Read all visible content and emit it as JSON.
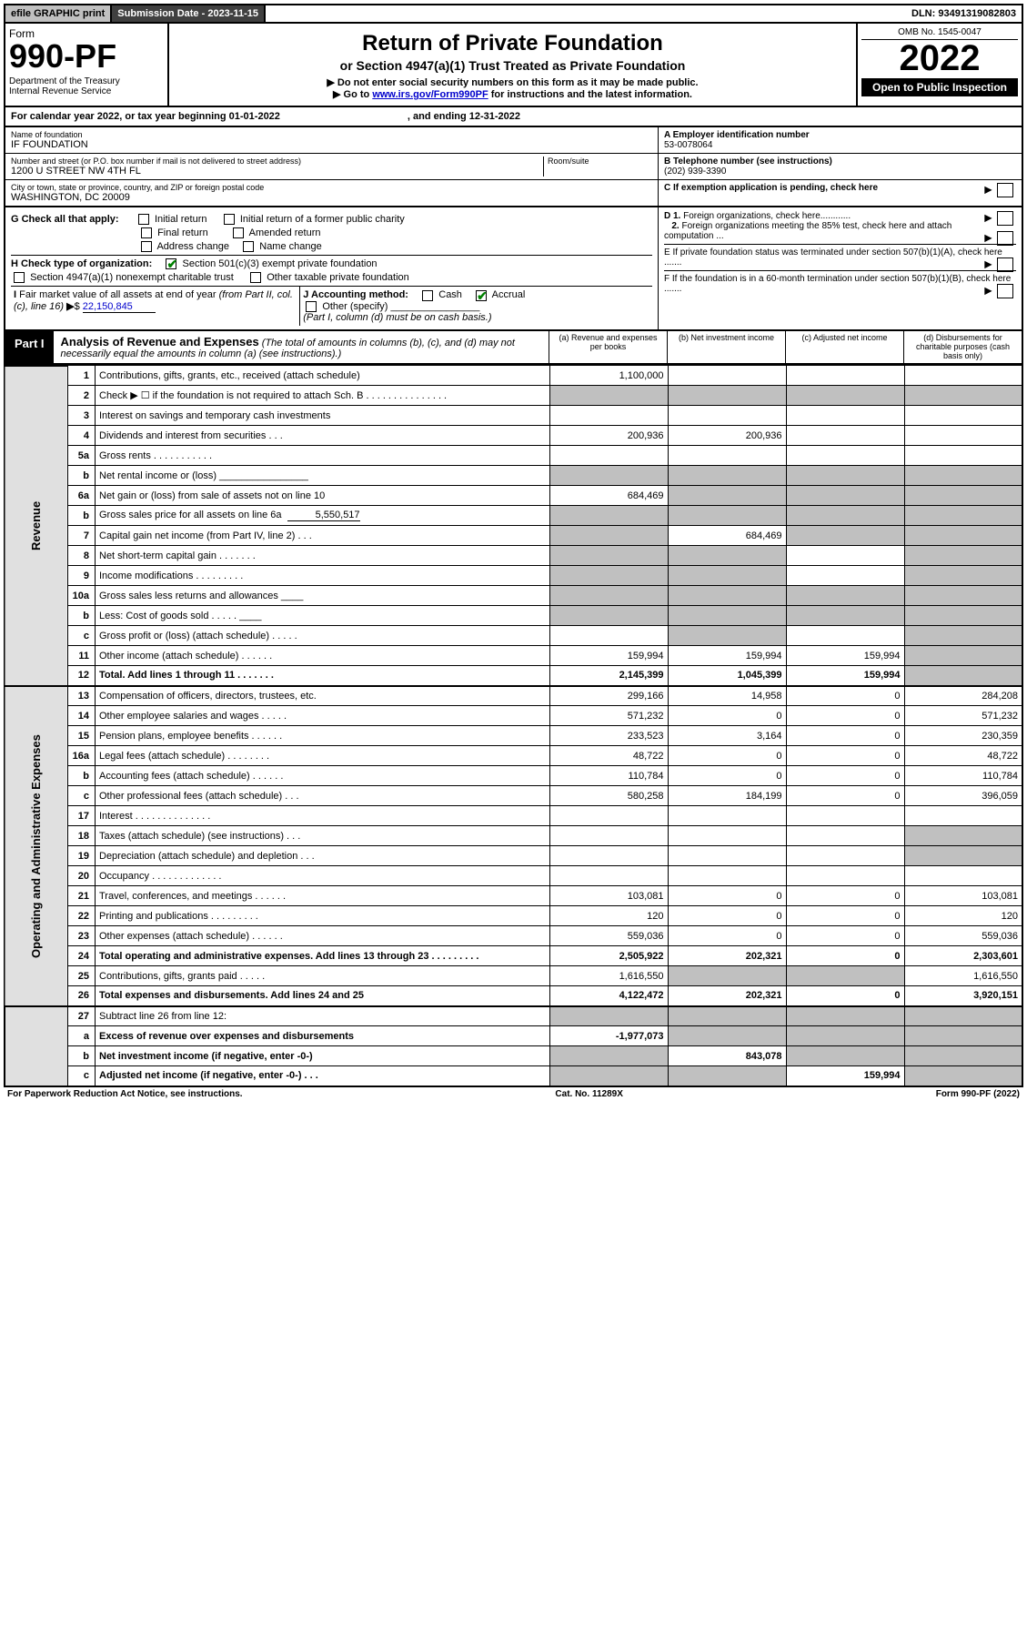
{
  "topbar": {
    "efile": "efile GRAPHIC print",
    "subdate_label": "Submission Date - ",
    "subdate": "2023-11-15",
    "dln_label": "DLN: ",
    "dln": "93491319082803"
  },
  "header": {
    "form_word": "Form",
    "form_num": "990-PF",
    "dept": "Department of the Treasury\nInternal Revenue Service",
    "title": "Return of Private Foundation",
    "subtitle": "or Section 4947(a)(1) Trust Treated as Private Foundation",
    "instr1": "▶ Do not enter social security numbers on this form as it may be made public.",
    "instr2_pre": "▶ Go to ",
    "instr2_link": "www.irs.gov/Form990PF",
    "instr2_post": " for instructions and the latest information.",
    "omb": "OMB No. 1545-0047",
    "year": "2022",
    "inspect": "Open to Public Inspection"
  },
  "calyr": {
    "text": "For calendar year 2022, or tax year beginning 01-01-2022",
    "ending": ", and ending 12-31-2022"
  },
  "entity": {
    "name_label": "Name of foundation",
    "name": "IF FOUNDATION",
    "addr_label": "Number and street (or P.O. box number if mail is not delivered to street address)",
    "addr": "1200 U STREET NW 4TH FL",
    "room_label": "Room/suite",
    "city_label": "City or town, state or province, country, and ZIP or foreign postal code",
    "city": "WASHINGTON, DC  20009",
    "ein_label": "A Employer identification number",
    "ein": "53-0078064",
    "tel_label": "B Telephone number (see instructions)",
    "tel": "(202) 939-3390",
    "c_label": "C If exemption application is pending, check here"
  },
  "checks": {
    "g_label": "G Check all that apply:",
    "g_opts": [
      "Initial return",
      "Initial return of a former public charity",
      "Final return",
      "Amended return",
      "Address change",
      "Name change"
    ],
    "h_label": "H Check type of organization:",
    "h_501c3": "Section 501(c)(3) exempt private foundation",
    "h_4947": "Section 4947(a)(1) nonexempt charitable trust",
    "h_other_tax": "Other taxable private foundation",
    "i_label": "I Fair market value of all assets at end of year (from Part II, col. (c), line 16) ▶$",
    "i_value": "22,150,845",
    "j_label": "J Accounting method:",
    "j_cash": "Cash",
    "j_accrual": "Accrual",
    "j_other": "Other (specify)",
    "j_note": "(Part I, column (d) must be on cash basis.)",
    "d1": "D 1. Foreign organizations, check here............",
    "d2": "2. Foreign organizations meeting the 85% test, check here and attach computation ...",
    "e": "E  If private foundation status was terminated under section 507(b)(1)(A), check here .......",
    "f": "F  If the foundation is in a 60-month termination under section 507(b)(1)(B), check here .......",
    "arrow": "▶"
  },
  "part1": {
    "label": "Part I",
    "title": "Analysis of Revenue and Expenses",
    "title_note": " (The total of amounts in columns (b), (c), and (d) may not necessarily equal the amounts in column (a) (see instructions).)",
    "col_a": "(a)   Revenue and expenses per books",
    "col_b": "(b)   Net investment income",
    "col_c": "(c)   Adjusted net income",
    "col_d": "(d)   Disbursements for charitable purposes (cash basis only)"
  },
  "vtabs": {
    "rev": "Revenue",
    "exp": "Operating and Administrative Expenses"
  },
  "rows": [
    {
      "n": "1",
      "d": "Contributions, gifts, grants, etc., received (attach schedule)",
      "a": "1,100,000",
      "b": "",
      "c": "",
      "dd": ""
    },
    {
      "n": "2",
      "d": "Check ▶ ☐ if the foundation is not required to attach Sch. B   .   .   .   .   .   .   .   .   .   .   .   .   .   .   .",
      "a": "g",
      "b": "g",
      "c": "g",
      "dd": "g"
    },
    {
      "n": "3",
      "d": "Interest on savings and temporary cash investments",
      "a": "",
      "b": "",
      "c": "",
      "dd": ""
    },
    {
      "n": "4",
      "d": "Dividends and interest from securities   .   .   .",
      "a": "200,936",
      "b": "200,936",
      "c": "",
      "dd": ""
    },
    {
      "n": "5a",
      "d": "Gross rents   .   .   .   .   .   .   .   .   .   .   .",
      "a": "",
      "b": "",
      "c": "",
      "dd": ""
    },
    {
      "n": "b",
      "d": "Net rental income or (loss)  ________________",
      "a": "g",
      "b": "g",
      "c": "g",
      "dd": "g"
    },
    {
      "n": "6a",
      "d": "Net gain or (loss) from sale of assets not on line 10",
      "a": "684,469",
      "b": "g",
      "c": "g",
      "dd": "g"
    },
    {
      "n": "b",
      "d": "Gross sales price for all assets on line 6a",
      "inline": "5,550,517",
      "a": "g",
      "b": "g",
      "c": "g",
      "dd": "g"
    },
    {
      "n": "7",
      "d": "Capital gain net income (from Part IV, line 2)   .   .   .",
      "a": "g",
      "b": "684,469",
      "c": "g",
      "dd": "g"
    },
    {
      "n": "8",
      "d": "Net short-term capital gain   .   .   .   .   .   .   .",
      "a": "g",
      "b": "g",
      "c": "",
      "dd": "g"
    },
    {
      "n": "9",
      "d": "Income modifications   .   .   .   .   .   .   .   .   .",
      "a": "g",
      "b": "g",
      "c": "",
      "dd": "g"
    },
    {
      "n": "10a",
      "d": "Gross sales less returns and allowances  ____",
      "a": "g",
      "b": "g",
      "c": "g",
      "dd": "g"
    },
    {
      "n": "b",
      "d": "Less: Cost of goods sold   .   .   .   .   .  ____",
      "a": "g",
      "b": "g",
      "c": "g",
      "dd": "g"
    },
    {
      "n": "c",
      "d": "Gross profit or (loss) (attach schedule)   .   .   .   .   .",
      "a": "",
      "b": "g",
      "c": "",
      "dd": "g"
    },
    {
      "n": "11",
      "d": "Other income (attach schedule)   .   .   .   .   .   .",
      "a": "159,994",
      "b": "159,994",
      "c": "159,994",
      "dd": "g"
    },
    {
      "n": "12",
      "d": "Total. Add lines 1 through 11   .   .   .   .   .   .   .",
      "bold": true,
      "a": "2,145,399",
      "b": "1,045,399",
      "c": "159,994",
      "dd": "g"
    }
  ],
  "exp_rows": [
    {
      "n": "13",
      "d": "Compensation of officers, directors, trustees, etc.",
      "a": "299,166",
      "b": "14,958",
      "c": "0",
      "dd": "284,208"
    },
    {
      "n": "14",
      "d": "Other employee salaries and wages   .   .   .   .   .",
      "a": "571,232",
      "b": "0",
      "c": "0",
      "dd": "571,232"
    },
    {
      "n": "15",
      "d": "Pension plans, employee benefits   .   .   .   .   .   .",
      "a": "233,523",
      "b": "3,164",
      "c": "0",
      "dd": "230,359"
    },
    {
      "n": "16a",
      "d": "Legal fees (attach schedule)   .   .   .   .   .   .   .   .",
      "a": "48,722",
      "b": "0",
      "c": "0",
      "dd": "48,722"
    },
    {
      "n": "b",
      "d": "Accounting fees (attach schedule)   .   .   .   .   .   .",
      "a": "110,784",
      "b": "0",
      "c": "0",
      "dd": "110,784"
    },
    {
      "n": "c",
      "d": "Other professional fees (attach schedule)   .   .   .",
      "a": "580,258",
      "b": "184,199",
      "c": "0",
      "dd": "396,059"
    },
    {
      "n": "17",
      "d": "Interest   .   .   .   .   .   .   .   .   .   .   .   .   .   .",
      "a": "",
      "b": "",
      "c": "",
      "dd": ""
    },
    {
      "n": "18",
      "d": "Taxes (attach schedule) (see instructions)   .   .   .",
      "a": "",
      "b": "",
      "c": "",
      "dd": "g"
    },
    {
      "n": "19",
      "d": "Depreciation (attach schedule) and depletion   .   .   .",
      "a": "",
      "b": "",
      "c": "",
      "dd": "g"
    },
    {
      "n": "20",
      "d": "Occupancy   .   .   .   .   .   .   .   .   .   .   .   .   .",
      "a": "",
      "b": "",
      "c": "",
      "dd": ""
    },
    {
      "n": "21",
      "d": "Travel, conferences, and meetings   .   .   .   .   .   .",
      "a": "103,081",
      "b": "0",
      "c": "0",
      "dd": "103,081"
    },
    {
      "n": "22",
      "d": "Printing and publications   .   .   .   .   .   .   .   .   .",
      "a": "120",
      "b": "0",
      "c": "0",
      "dd": "120"
    },
    {
      "n": "23",
      "d": "Other expenses (attach schedule)   .   .   .   .   .   .",
      "a": "559,036",
      "b": "0",
      "c": "0",
      "dd": "559,036"
    },
    {
      "n": "24",
      "d": "Total operating and administrative expenses. Add lines 13 through 23   .   .   .   .   .   .   .   .   .",
      "bold": true,
      "a": "2,505,922",
      "b": "202,321",
      "c": "0",
      "dd": "2,303,601"
    },
    {
      "n": "25",
      "d": "Contributions, gifts, grants paid   .   .   .   .   .",
      "a": "1,616,550",
      "b": "g",
      "c": "g",
      "dd": "1,616,550"
    },
    {
      "n": "26",
      "d": "Total expenses and disbursements. Add lines 24 and 25",
      "bold": true,
      "a": "4,122,472",
      "b": "202,321",
      "c": "0",
      "dd": "3,920,151"
    }
  ],
  "net_rows": [
    {
      "n": "27",
      "d": "Subtract line 26 from line 12:",
      "a": "g",
      "b": "g",
      "c": "g",
      "dd": "g"
    },
    {
      "n": "a",
      "d": "Excess of revenue over expenses and disbursements",
      "bold": true,
      "a": "-1,977,073",
      "b": "g",
      "c": "g",
      "dd": "g"
    },
    {
      "n": "b",
      "d": "Net investment income (if negative, enter -0-)",
      "bold": true,
      "a": "g",
      "b": "843,078",
      "c": "g",
      "dd": "g"
    },
    {
      "n": "c",
      "d": "Adjusted net income (if negative, enter -0-)   .   .   .",
      "bold": true,
      "a": "g",
      "b": "g",
      "c": "159,994",
      "dd": "g"
    }
  ],
  "footer": {
    "left": "For Paperwork Reduction Act Notice, see instructions.",
    "mid": "Cat. No. 11289X",
    "right": "Form 990-PF (2022)"
  }
}
